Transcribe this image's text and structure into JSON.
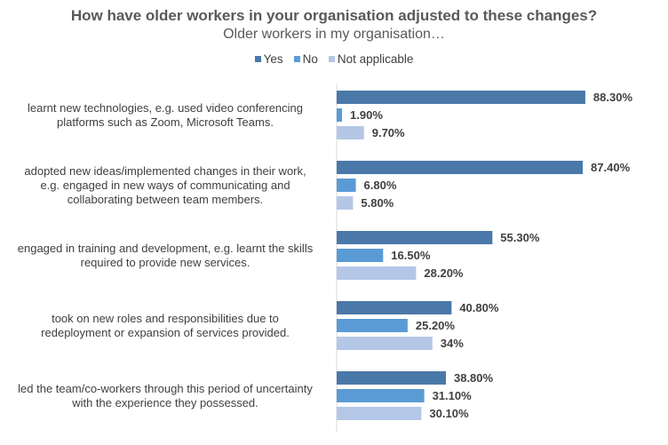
{
  "chart_data": {
    "type": "bar",
    "orientation": "horizontal",
    "title": "How have older workers in your organisation adjusted to these changes?",
    "subtitle": "Older workers in my organisation…",
    "legend_position": "top",
    "categories": [
      "learnt new technologies, e.g. used video conferencing platforms such as Zoom, Microsoft Teams.",
      "adopted new ideas/implemented changes in their work, e.g. engaged in new ways of communicating and collaborating between team members.",
      "engaged in training and development, e.g. learnt the skills required to provide new services.",
      "took on new roles and responsibilities due to redeployment or expansion of services provided.",
      "led the team/co-workers through this period of uncertainty with the experience they possessed."
    ],
    "category_lines": [
      [
        "learnt new technologies, e.g. used video conferencing",
        "platforms such as Zoom, Microsoft Teams."
      ],
      [
        "adopted new ideas/implemented changes in their work,",
        "e.g. engaged in new ways of communicating and",
        "collaborating between team members."
      ],
      [
        "engaged in training and development, e.g. learnt the skills",
        "required to provide new services."
      ],
      [
        "took on new roles and responsibilities due to",
        "redeployment or expansion of services provided."
      ],
      [
        "led the team/co-workers through this period of uncertainty",
        "with the experience they possessed."
      ]
    ],
    "series": [
      {
        "name": "Yes",
        "color": "#4a78a8",
        "values": [
          88.3,
          87.4,
          55.3,
          40.8,
          38.8
        ],
        "labels": [
          "88.30%",
          "87.40%",
          "55.30%",
          "40.80%",
          "38.80%"
        ]
      },
      {
        "name": "No",
        "color": "#5b9bd5",
        "values": [
          1.9,
          6.8,
          16.5,
          25.2,
          31.1
        ],
        "labels": [
          "1.90%",
          "6.80%",
          "16.50%",
          "25.20%",
          "31.10%"
        ]
      },
      {
        "name": "Not applicable",
        "color": "#b4c7e7",
        "values": [
          9.7,
          5.8,
          28.2,
          34,
          30.1
        ],
        "labels": [
          "9.70%",
          "5.80%",
          "28.20%",
          "34%",
          "30.10%"
        ]
      }
    ],
    "xlim": [
      0,
      100
    ],
    "unit": "%",
    "grid": false
  }
}
